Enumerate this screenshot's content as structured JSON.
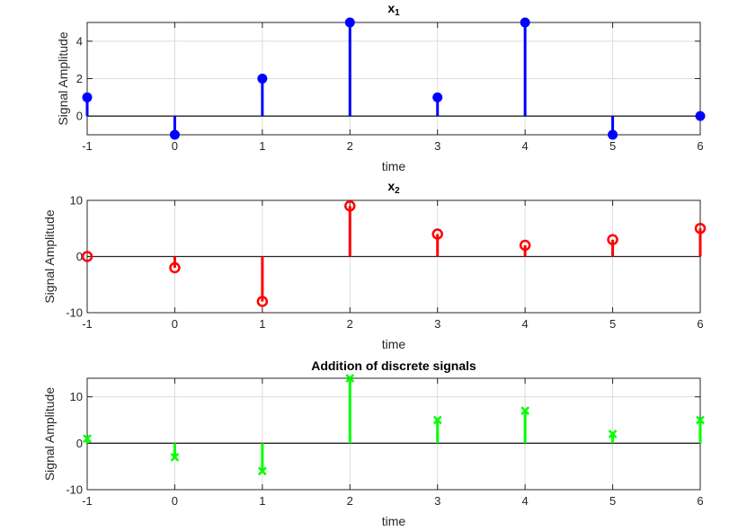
{
  "chart_data": [
    {
      "type": "stem",
      "title": "x",
      "title_sub": "1",
      "xlabel": "time",
      "ylabel": "Signal Amplitude",
      "x": [
        -1,
        0,
        1,
        2,
        3,
        4,
        5,
        6
      ],
      "y": [
        1,
        -1,
        2,
        5,
        1,
        5,
        -1,
        0
      ],
      "xlim": [
        -1,
        6
      ],
      "ylim": [
        -1,
        5
      ],
      "yticks": [
        0,
        2,
        4
      ],
      "xticks": [
        -1,
        0,
        1,
        2,
        3,
        4,
        5,
        6
      ],
      "color": "#0000ff",
      "marker": "filled-circle",
      "grid": true
    },
    {
      "type": "stem",
      "title": "x",
      "title_sub": "2",
      "xlabel": "time",
      "ylabel": "Signal Amplitude",
      "x": [
        -1,
        0,
        1,
        2,
        3,
        4,
        5,
        6
      ],
      "y": [
        0,
        -2,
        -8,
        9,
        4,
        2,
        3,
        5
      ],
      "xlim": [
        -1,
        6
      ],
      "ylim": [
        -10,
        10
      ],
      "yticks": [
        -10,
        0,
        10
      ],
      "xticks": [
        -1,
        0,
        1,
        2,
        3,
        4,
        5,
        6
      ],
      "color": "#ff0000",
      "marker": "open-circle",
      "grid": true
    },
    {
      "type": "stem",
      "title": "Addition of discrete signals",
      "xlabel": "time",
      "ylabel": "Signal Amplitude",
      "x": [
        -1,
        0,
        1,
        2,
        3,
        4,
        5,
        6
      ],
      "y": [
        1,
        -3,
        -6,
        14,
        5,
        7,
        2,
        5
      ],
      "xlim": [
        -1,
        6
      ],
      "ylim": [
        -10,
        14
      ],
      "yticks": [
        -10,
        0,
        10
      ],
      "xticks": [
        -1,
        0,
        1,
        2,
        3,
        4,
        5,
        6
      ],
      "color": "#00ff00",
      "marker": "x",
      "grid": true
    }
  ]
}
